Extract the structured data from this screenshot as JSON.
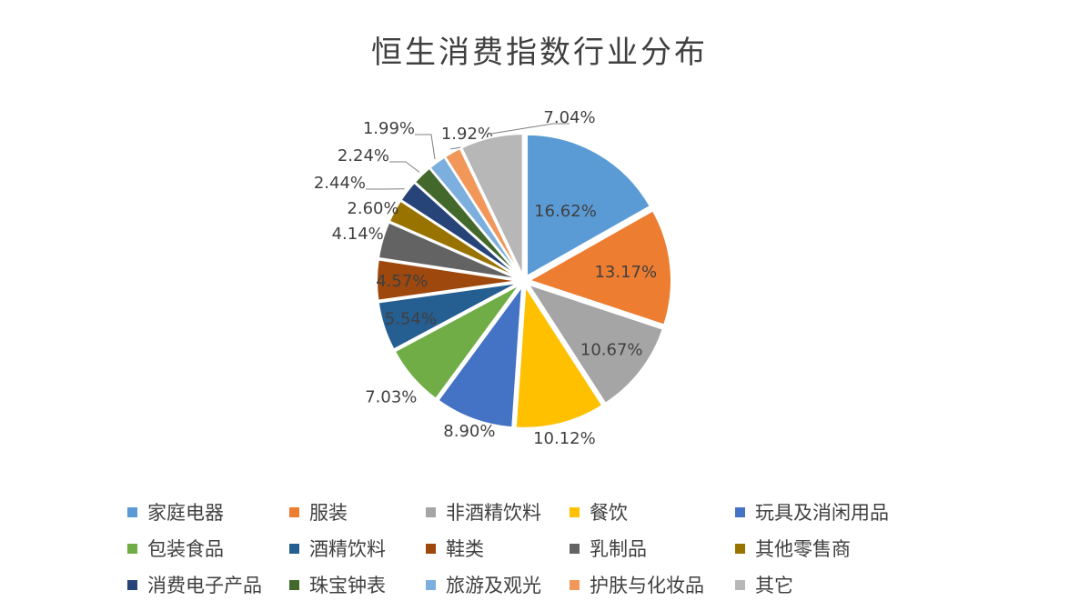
{
  "chart_data": {
    "type": "pie",
    "title": "恒生消费指数行业分布",
    "legend_position": "bottom",
    "slices": [
      {
        "label": "家庭电器",
        "value": 16.62,
        "value_label": "16.62%",
        "color": "#5B9BD5"
      },
      {
        "label": "服装",
        "value": 13.17,
        "value_label": "13.17%",
        "color": "#ED7D31"
      },
      {
        "label": "非酒精饮料",
        "value": 10.67,
        "value_label": "10.67%",
        "color": "#A5A5A5"
      },
      {
        "label": "餐饮",
        "value": 10.12,
        "value_label": "10.12%",
        "color": "#FFC000"
      },
      {
        "label": "玩具及消闲用品",
        "value": 8.9,
        "value_label": "8.90%",
        "color": "#4472C4"
      },
      {
        "label": "包装食品",
        "value": 7.03,
        "value_label": "7.03%",
        "color": "#70AD47"
      },
      {
        "label": "酒精饮料",
        "value": 5.54,
        "value_label": "5.54%",
        "color": "#255E91"
      },
      {
        "label": "鞋类",
        "value": 4.57,
        "value_label": "4.57%",
        "color": "#9E480E"
      },
      {
        "label": "乳制品",
        "value": 4.14,
        "value_label": "4.14%",
        "color": "#636363"
      },
      {
        "label": "其他零售商",
        "value": 2.6,
        "value_label": "2.60%",
        "color": "#997300"
      },
      {
        "label": "消费电子产品",
        "value": 2.44,
        "value_label": "2.44%",
        "color": "#264478"
      },
      {
        "label": "珠宝钟表",
        "value": 2.24,
        "value_label": "2.24%",
        "color": "#43682B"
      },
      {
        "label": "旅游及观光",
        "value": 1.99,
        "value_label": "1.99%",
        "color": "#7CAFDD"
      },
      {
        "label": "护肤与化妆品",
        "value": 1.92,
        "value_label": "1.92%",
        "color": "#F1975A"
      },
      {
        "label": "其它",
        "value": 7.04,
        "value_label": "7.04%",
        "color": "#B7B7B7"
      }
    ]
  }
}
